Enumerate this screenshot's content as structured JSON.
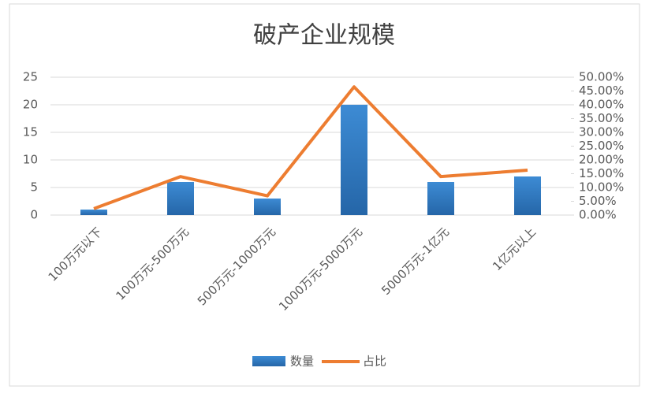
{
  "chart_data": {
    "type": "bar",
    "title": "破产企业规模",
    "categories": [
      "100万元以下",
      "100万元-500万元",
      "500万元-1000万元",
      "1000万元-5000万元",
      "5000万元-1亿元",
      "1亿元以上"
    ],
    "series": [
      {
        "name": "数量",
        "type": "bar",
        "color": "#2e75b6",
        "values": [
          1,
          6,
          3,
          20,
          6,
          7
        ]
      },
      {
        "name": "占比",
        "type": "line",
        "axis": "y2",
        "color": "#ed7d31",
        "values": [
          2.33,
          13.95,
          6.98,
          46.51,
          13.95,
          16.28
        ]
      }
    ],
    "ylim": [
      0,
      25
    ],
    "yticks": [
      0,
      5,
      10,
      15,
      20,
      25
    ],
    "y2lim": [
      0,
      50
    ],
    "y2ticks": [
      {
        "value": 0,
        "label": "0.00%"
      },
      {
        "value": 5,
        "label": "5.00%"
      },
      {
        "value": 10,
        "label": "10.00%"
      },
      {
        "value": 15,
        "label": "15.00%"
      },
      {
        "value": 20,
        "label": "20.00%"
      },
      {
        "value": 25,
        "label": "25.00%"
      },
      {
        "value": 30,
        "label": "30.00%"
      },
      {
        "value": 35,
        "label": "35.00%"
      },
      {
        "value": 40,
        "label": "40.00%"
      },
      {
        "value": 45,
        "label": "45.00%"
      },
      {
        "value": 50,
        "label": "50.00%"
      }
    ],
    "grid": true,
    "legend": "bottom"
  }
}
